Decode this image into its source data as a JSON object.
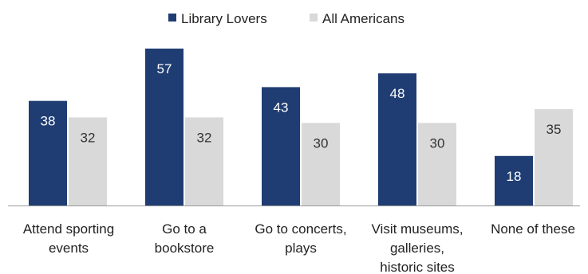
{
  "chart_data": {
    "type": "bar",
    "categories": [
      [
        "Attend sporting",
        "events"
      ],
      [
        "Go to a",
        "bookstore"
      ],
      [
        "Go to concerts,",
        "plays"
      ],
      [
        "Visit museums,",
        "galleries,",
        "historic sites"
      ],
      [
        "None of these"
      ]
    ],
    "series": [
      {
        "name": "Library Lovers",
        "color": "#1f3d73",
        "label_color": "#ffffff",
        "values": [
          38,
          57,
          43,
          48,
          18
        ]
      },
      {
        "name": "All Americans",
        "color": "#d9d9d9",
        "label_color": "#333333",
        "values": [
          32,
          32,
          30,
          30,
          35
        ]
      }
    ],
    "title": "",
    "xlabel": "",
    "ylabel": "",
    "ylim": [
      0,
      57
    ],
    "grid": false,
    "legend": "top-center",
    "data_labels": true
  }
}
